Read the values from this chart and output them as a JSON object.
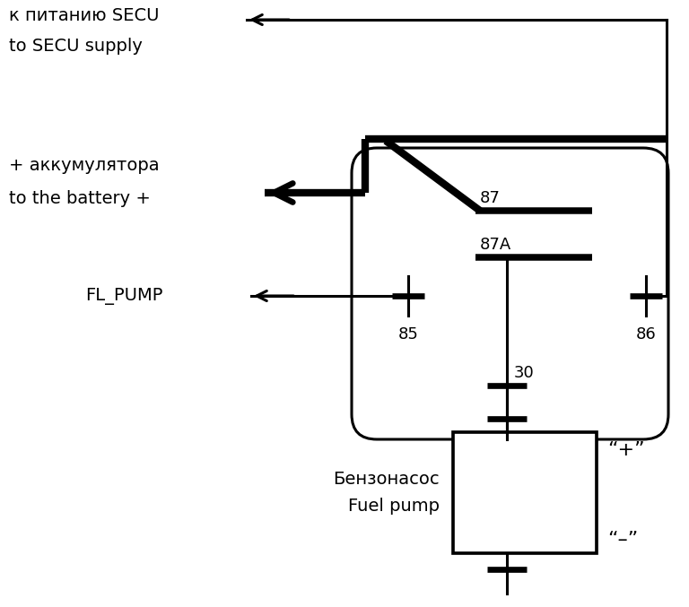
{
  "bg_color": "#ffffff",
  "line_color": "#000000",
  "text_secu_ru": "к питанию SECU",
  "text_secu_en": "to SECU supply",
  "text_battery_ru": "+ аккумулятора",
  "text_battery_en": "to the battery +",
  "text_flpump": "FL_PUMP",
  "text_pump_ru": "Бензонасос",
  "text_pump_en": "Fuel pump",
  "text_plus": "“+”",
  "text_minus": "“–”",
  "pin87": "87",
  "pin87A": "87A",
  "pin85": "85",
  "pin86": "86",
  "pin30": "30",
  "fontsize_main": 14,
  "fontsize_label": 13,
  "lw_thin": 2.2,
  "lw_thick": 6.0
}
